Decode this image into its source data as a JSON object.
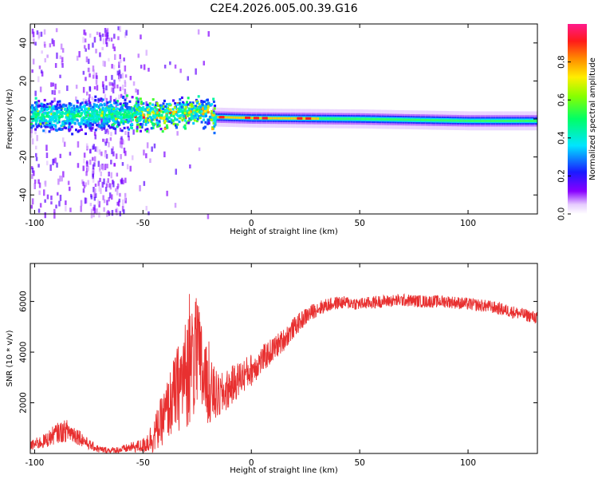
{
  "chart_data": [
    {
      "type": "heatmap",
      "title": "C2E4.2026.005.00.39.G16",
      "xlabel": "Height of straight line (km)",
      "ylabel": "Frequency (Hz)",
      "xlim": [
        -102,
        132
      ],
      "ylim": [
        -50,
        50
      ],
      "xticks": [
        -100,
        -50,
        0,
        50,
        100
      ],
      "yticks": [
        -40,
        -20,
        0,
        20,
        40
      ],
      "colorbar": {
        "label": "Normalized spectral amplitude",
        "range": [
          0,
          1
        ],
        "ticks": [
          "0.0",
          "0.2",
          "0.4",
          "0.6",
          "0.8"
        ],
        "tick_values": [
          0,
          0.2,
          0.4,
          0.6,
          0.8
        ],
        "colormap": "hsv-rainbow (white → violet → blue → cyan → green → yellow → red → magenta)"
      },
      "ridge_center_hz": [
        {
          "x": -102,
          "y": 2
        },
        {
          "x": -60,
          "y": 3
        },
        {
          "x": -40,
          "y": 3
        },
        {
          "x": -20,
          "y": 5
        },
        {
          "x": -17,
          "y": 1
        },
        {
          "x": 0,
          "y": 0.5
        },
        {
          "x": 50,
          "y": 0
        },
        {
          "x": 100,
          "y": -1
        },
        {
          "x": 132,
          "y": -1
        }
      ]
    },
    {
      "type": "line",
      "xlabel": "Height of straight line (km)",
      "ylabel": "SNR (10 * v/v)",
      "xlim": [
        -102,
        132
      ],
      "ylim": [
        0,
        7500
      ],
      "xticks": [
        -100,
        -50,
        0,
        50,
        100
      ],
      "yticks": [
        2000,
        4000,
        6000
      ],
      "color": "#e83030",
      "series": [
        {
          "name": "SNR",
          "x": [
            -102,
            -95,
            -90,
            -85,
            -80,
            -75,
            -70,
            -65,
            -60,
            -55,
            -50,
            -45,
            -40,
            -35,
            -30,
            -25,
            -20,
            -15,
            -10,
            -5,
            0,
            5,
            10,
            15,
            20,
            25,
            30,
            35,
            40,
            45,
            50,
            60,
            70,
            80,
            90,
            100,
            110,
            120,
            132
          ],
          "y": [
            300,
            500,
            800,
            900,
            700,
            350,
            150,
            120,
            150,
            250,
            300,
            700,
            1500,
            2400,
            3200,
            3800,
            2500,
            2200,
            2600,
            3000,
            3300,
            3700,
            4100,
            4500,
            5000,
            5400,
            5700,
            5850,
            5950,
            5950,
            5900,
            6000,
            6050,
            6000,
            6000,
            5900,
            5800,
            5600,
            5350
          ],
          "noise": [
            200,
            300,
            400,
            450,
            350,
            200,
            150,
            120,
            150,
            200,
            300,
            700,
            1100,
            1600,
            2200,
            2400,
            1400,
            900,
            800,
            700,
            650,
            550,
            500,
            450,
            400,
            350,
            300,
            280,
            260,
            260,
            250,
            250,
            250,
            250,
            250,
            250,
            250,
            250,
            250
          ]
        }
      ]
    }
  ]
}
